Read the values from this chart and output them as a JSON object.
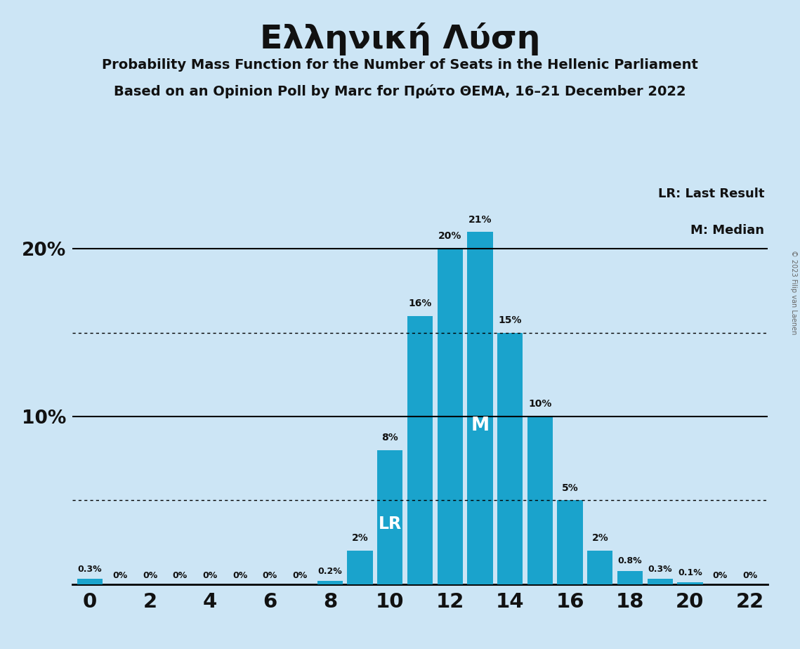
{
  "title": "Ελληνική Λύση",
  "subtitle1": "Probability Mass Function for the Number of Seats in the Hellenic Parliament",
  "subtitle2": "Based on an Opinion Poll by Marc for Πρώτο ΘΕΜΑ, 16–21 December 2022",
  "seats": [
    0,
    1,
    2,
    3,
    4,
    5,
    6,
    7,
    8,
    9,
    10,
    11,
    12,
    13,
    14,
    15,
    16,
    17,
    18,
    19,
    20,
    21,
    22
  ],
  "probabilities": [
    0.3,
    0.0,
    0.0,
    0.0,
    0.0,
    0.0,
    0.0,
    0.0,
    0.2,
    2.0,
    8.0,
    16.0,
    20.0,
    21.0,
    15.0,
    10.0,
    5.0,
    2.0,
    0.8,
    0.3,
    0.1,
    0.0,
    0.0
  ],
  "bar_color": "#1aa3cc",
  "background_color": "#cce5f5",
  "bar_labels": [
    "0.3%",
    "0%",
    "0%",
    "0%",
    "0%",
    "0%",
    "0%",
    "0%",
    "0.2%",
    "2%",
    "8%",
    "16%",
    "20%",
    "21%",
    "15%",
    "10%",
    "5%",
    "2%",
    "0.8%",
    "0.3%",
    "0.1%",
    "0%",
    "0%"
  ],
  "lr_seat": 10,
  "median_seat": 13,
  "dotted_line_1": 15.0,
  "dotted_line_2": 5.0,
  "hline_10": 10.0,
  "hline_20": 20.0,
  "xlim": [
    -0.6,
    22.6
  ],
  "ylim": [
    0,
    24
  ],
  "xticks": [
    0,
    2,
    4,
    6,
    8,
    10,
    12,
    14,
    16,
    18,
    20,
    22
  ],
  "legend_lr": "LR: Last Result",
  "legend_m": "M: Median",
  "copyright": "© 2023 Filip van Laenen",
  "bar_width": 0.85
}
